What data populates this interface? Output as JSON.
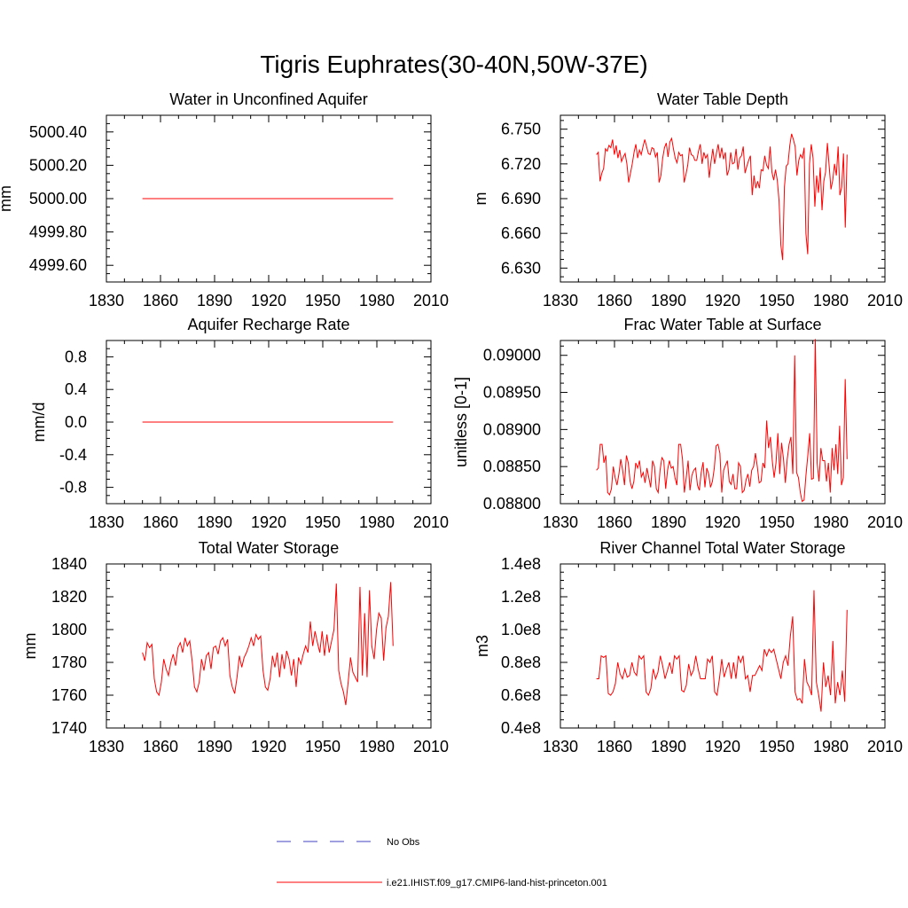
{
  "title": "Tigris Euphrates(30-40N,50W-37E)",
  "colors": {
    "series": "#ff0000",
    "obs": "#4040c0",
    "axis": "#000000"
  },
  "legend": {
    "obs_label": "No Obs",
    "model_label": "i.e21.IHIST.f09_g17.CMIP6-land-hist-princeton.001"
  },
  "chart_data": [
    {
      "type": "line",
      "title": "Water in Unconfined Aquifer",
      "ylabel": "mm",
      "xlim": [
        1830,
        2010
      ],
      "xticks": [
        "1830",
        "1860",
        "1890",
        "1920",
        "1950",
        "1980",
        "2010"
      ],
      "ylim": [
        4999.5,
        5000.5
      ],
      "yticks": [
        "4999.60",
        "4999.80",
        "5000.00",
        "5000.20",
        "5000.40"
      ],
      "x_start": 1850,
      "series": [
        {
          "values": [
            5000.0,
            5000.0
          ],
          "x": [
            1850,
            1989
          ]
        }
      ]
    },
    {
      "type": "line",
      "title": "Water Table Depth",
      "ylabel": "m",
      "xlim": [
        1830,
        2010
      ],
      "xticks": [
        "1830",
        "1860",
        "1890",
        "1920",
        "1950",
        "1980",
        "2010"
      ],
      "ylim": [
        6.618,
        6.762
      ],
      "yticks": [
        "6.630",
        "6.660",
        "6.690",
        "6.720",
        "6.750"
      ],
      "x_start": 1850,
      "series": [
        {
          "values": [
            6.728,
            6.73,
            6.705,
            6.712,
            6.716,
            6.733,
            6.731,
            6.736,
            6.734,
            6.741,
            6.728,
            6.736,
            6.725,
            6.732,
            6.722,
            6.726,
            6.729,
            6.72,
            6.704,
            6.712,
            6.72,
            6.73,
            6.737,
            6.725,
            6.732,
            6.728,
            6.735,
            6.741,
            6.735,
            6.729,
            6.728,
            6.734,
            6.733,
            6.726,
            6.73,
            6.704,
            6.71,
            6.725,
            6.734,
            6.738,
            6.726,
            6.739,
            6.742,
            6.733,
            6.725,
            6.721,
            6.73,
            6.727,
            6.728,
            6.704,
            6.711,
            6.719,
            6.734,
            6.728,
            6.727,
            6.723,
            6.723,
            6.731,
            6.737,
            6.72,
            6.73,
            6.725,
            6.728,
            6.708,
            6.722,
            6.733,
            6.72,
            6.729,
            6.737,
            6.725,
            6.734,
            6.724,
            6.73,
            6.71,
            6.715,
            6.73,
            6.72,
            6.721,
            6.733,
            6.715,
            6.725,
            6.727,
            6.735,
            6.712,
            6.718,
            6.723,
            6.727,
            6.693,
            6.71,
            6.699,
            6.705,
            6.699,
            6.715,
            6.714,
            6.727,
            6.719,
            6.716,
            6.735,
            6.713,
            6.706,
            6.715,
            6.706,
            6.688,
            6.65,
            6.637,
            6.7,
            6.718,
            6.72,
            6.736,
            6.746,
            6.741,
            6.735,
            6.71,
            6.723,
            6.728,
            6.725,
            6.734,
            6.66,
            6.642,
            6.72,
            6.737,
            6.725,
            6.683,
            6.71,
            6.695,
            6.717,
            6.68,
            6.705,
            6.713,
            6.738,
            6.718,
            6.698,
            6.706,
            6.72,
            6.71,
            6.735,
            6.693,
            6.7,
            6.729,
            6.665,
            6.728
          ]
        }
      ]
    },
    {
      "type": "line",
      "title": "Aquifer Recharge Rate",
      "ylabel": "mm/d",
      "xlim": [
        1830,
        2010
      ],
      "xticks": [
        "1830",
        "1860",
        "1890",
        "1920",
        "1950",
        "1980",
        "2010"
      ],
      "ylim": [
        -1.0,
        1.0
      ],
      "yticks": [
        "-0.8",
        "-0.4",
        "0.0",
        "0.4",
        "0.8"
      ],
      "x_start": 1850,
      "series": [
        {
          "values": [
            0.0,
            0.0
          ],
          "x": [
            1850,
            1989
          ]
        }
      ]
    },
    {
      "type": "line",
      "title": "Frac Water Table at Surface",
      "ylabel": "unitless [0-1]",
      "xlim": [
        1830,
        2010
      ],
      "xticks": [
        "1830",
        "1860",
        "1890",
        "1920",
        "1950",
        "1980",
        "2010"
      ],
      "ylim": [
        0.088,
        0.0902
      ],
      "yticks": [
        "0.08800",
        "0.08850",
        "0.08900",
        "0.08950",
        "0.09000"
      ],
      "x_start": 1850,
      "series": [
        {
          "values": [
            0.08845,
            0.08848,
            0.0888,
            0.0888,
            0.08855,
            0.08865,
            0.08815,
            0.08812,
            0.0882,
            0.0885,
            0.08835,
            0.08825,
            0.0884,
            0.0886,
            0.08845,
            0.08825,
            0.08865,
            0.08855,
            0.0883,
            0.0882,
            0.0883,
            0.08855,
            0.08848,
            0.08858,
            0.08836,
            0.08842,
            0.08828,
            0.08848,
            0.08835,
            0.08822,
            0.08858,
            0.0885,
            0.0882,
            0.08815,
            0.08845,
            0.08862,
            0.08858,
            0.0882,
            0.08845,
            0.08858,
            0.08848,
            0.0885,
            0.08835,
            0.08825,
            0.0888,
            0.0888,
            0.0886,
            0.08815,
            0.08835,
            0.08858,
            0.08818,
            0.08838,
            0.08845,
            0.08848,
            0.08825,
            0.08818,
            0.08842,
            0.08856,
            0.08822,
            0.08848,
            0.0884,
            0.08822,
            0.0883,
            0.08848,
            0.08878,
            0.0888,
            0.08868,
            0.08815,
            0.08845,
            0.08852,
            0.08858,
            0.0883,
            0.08826,
            0.0884,
            0.0882,
            0.0882,
            0.08855,
            0.0885,
            0.08815,
            0.08818,
            0.08832,
            0.0884,
            0.08823,
            0.08845,
            0.0885,
            0.08868,
            0.0885,
            0.08828,
            0.0883,
            0.08855,
            0.08848,
            0.08912,
            0.08875,
            0.0889,
            0.08858,
            0.08835,
            0.08855,
            0.08895,
            0.0884,
            0.08882,
            0.0886,
            0.08828,
            0.0886,
            0.0888,
            0.0889,
            0.0884,
            0.09,
            0.08842,
            0.08835,
            0.08815,
            0.08803,
            0.08805,
            0.08838,
            0.08865,
            0.08895,
            0.08833,
            0.08834,
            0.09022,
            0.08855,
            0.0883,
            0.08875,
            0.08858,
            0.08858,
            0.0883,
            0.08855,
            0.08815,
            0.08875,
            0.08845,
            0.0888,
            0.0884,
            0.08905,
            0.08825,
            0.08835,
            0.08968,
            0.0886
          ]
        }
      ]
    },
    {
      "type": "line",
      "title": "Total Water Storage",
      "ylabel": "mm",
      "xlim": [
        1830,
        2010
      ],
      "xticks": [
        "1830",
        "1860",
        "1890",
        "1920",
        "1950",
        "1980",
        "2010"
      ],
      "ylim": [
        1740,
        1840
      ],
      "yticks": [
        "1740",
        "1760",
        "1780",
        "1800",
        "1820",
        "1840"
      ],
      "x_start": 1850,
      "series": [
        {
          "values": [
            1786,
            1781,
            1792,
            1789,
            1791,
            1770,
            1762,
            1760,
            1768,
            1782,
            1776,
            1772,
            1780,
            1785,
            1778,
            1789,
            1792,
            1786,
            1795,
            1790,
            1793,
            1781,
            1765,
            1762,
            1768,
            1782,
            1775,
            1784,
            1786,
            1776,
            1789,
            1790,
            1785,
            1793,
            1795,
            1790,
            1794,
            1772,
            1765,
            1761,
            1771,
            1784,
            1777,
            1783,
            1786,
            1790,
            1795,
            1790,
            1797,
            1794,
            1796,
            1775,
            1765,
            1763,
            1770,
            1784,
            1777,
            1786,
            1771,
            1785,
            1776,
            1787,
            1782,
            1772,
            1782,
            1765,
            1783,
            1779,
            1785,
            1790,
            1786,
            1805,
            1790,
            1799,
            1792,
            1786,
            1799,
            1784,
            1797,
            1786,
            1793,
            1800,
            1828,
            1775,
            1767,
            1762,
            1754,
            1768,
            1783,
            1774,
            1771,
            1768,
            1826,
            1772,
            1810,
            1771,
            1824,
            1790,
            1782,
            1800,
            1810,
            1807,
            1781,
            1801,
            1808,
            1829,
            1790
          ]
        }
      ]
    },
    {
      "type": "line",
      "title": "River Channel Total Water Storage",
      "ylabel": "m3",
      "xlim": [
        1830,
        2010
      ],
      "xticks": [
        "1830",
        "1860",
        "1890",
        "1920",
        "1950",
        "1980",
        "2010"
      ],
      "ylim": [
        40000000,
        140000000
      ],
      "yticks": [
        "0.4e8",
        "0.6e8",
        "0.8e8",
        "1.0e8",
        "1.2e8",
        "1.4e8"
      ],
      "x_start": 1850,
      "series": [
        {
          "values": [
            70000000,
            70000000,
            84000000,
            83000000,
            84000000,
            61000000,
            60000000,
            62000000,
            67000000,
            80000000,
            73000000,
            70000000,
            76000000,
            71000000,
            72000000,
            80000000,
            74000000,
            72000000,
            84000000,
            82000000,
            84000000,
            62000000,
            60000000,
            64000000,
            76000000,
            70000000,
            74000000,
            84000000,
            78000000,
            70000000,
            75000000,
            80000000,
            73000000,
            84000000,
            82000000,
            84000000,
            63000000,
            62000000,
            66000000,
            79000000,
            72000000,
            75000000,
            84000000,
            76000000,
            70000000,
            70000000,
            70000000,
            82000000,
            80000000,
            84000000,
            62000000,
            60000000,
            70000000,
            82000000,
            71000000,
            76000000,
            80000000,
            70000000,
            80000000,
            70000000,
            84000000,
            80000000,
            84000000,
            70000000,
            72000000,
            62000000,
            72000000,
            72000000,
            75000000,
            78000000,
            75000000,
            88000000,
            84000000,
            88000000,
            86000000,
            88000000,
            82000000,
            76000000,
            70000000,
            80000000,
            84000000,
            78000000,
            96000000,
            108000000,
            62000000,
            57000000,
            58000000,
            55000000,
            82000000,
            68000000,
            65000000,
            60000000,
            124000000,
            68000000,
            60000000,
            50000000,
            80000000,
            65000000,
            72000000,
            60000000,
            93000000,
            55000000,
            68000000,
            60000000,
            75000000,
            56000000,
            112000000
          ]
        }
      ]
    }
  ]
}
